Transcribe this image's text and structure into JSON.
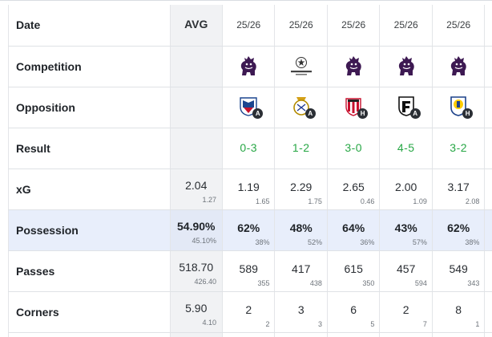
{
  "rows": {
    "date": {
      "label": "Date",
      "avg": "AVG",
      "games": [
        "25/26",
        "25/26",
        "25/26",
        "25/26",
        "25/26"
      ]
    },
    "competition": {
      "label": "Competition",
      "games": [
        "premier-league-icon",
        "champions-league-icon",
        "premier-league-icon",
        "premier-league-icon",
        "premier-league-icon"
      ]
    },
    "opposition": {
      "label": "Opposition",
      "games": [
        {
          "crest": "crystal-palace-crest-icon",
          "venue": "A"
        },
        {
          "crest": "real-madrid-crest-icon",
          "venue": "A"
        },
        {
          "crest": "sunderland-crest-icon",
          "venue": "H"
        },
        {
          "crest": "fulham-crest-icon",
          "venue": "A"
        },
        {
          "crest": "leeds-united-crest-icon",
          "venue": "H"
        }
      ]
    },
    "result": {
      "label": "Result",
      "games": [
        "0-3",
        "1-2",
        "3-0",
        "4-5",
        "3-2"
      ]
    },
    "xg": {
      "label": "xG",
      "avg": {
        "main": "2.04",
        "sub": "1.27"
      },
      "games": [
        {
          "main": "1.19",
          "sub": "1.65"
        },
        {
          "main": "2.29",
          "sub": "1.75"
        },
        {
          "main": "2.65",
          "sub": "0.46"
        },
        {
          "main": "2.00",
          "sub": "1.09"
        },
        {
          "main": "3.17",
          "sub": "2.08"
        }
      ]
    },
    "possession": {
      "label": "Possession",
      "avg": {
        "main": "54.90%",
        "sub": "45.10%"
      },
      "games": [
        {
          "main": "62%",
          "sub": "38%"
        },
        {
          "main": "48%",
          "sub": "52%"
        },
        {
          "main": "64%",
          "sub": "36%"
        },
        {
          "main": "43%",
          "sub": "57%"
        },
        {
          "main": "62%",
          "sub": "38%"
        }
      ]
    },
    "passes": {
      "label": "Passes",
      "avg": {
        "main": "518.70",
        "sub": "426.40"
      },
      "games": [
        {
          "main": "589",
          "sub": "355"
        },
        {
          "main": "417",
          "sub": "438"
        },
        {
          "main": "615",
          "sub": "350"
        },
        {
          "main": "457",
          "sub": "594"
        },
        {
          "main": "549",
          "sub": "343"
        }
      ]
    },
    "corners": {
      "label": "Corners",
      "avg": {
        "main": "5.90",
        "sub": "4.10"
      },
      "games": [
        {
          "main": "2",
          "sub": "2"
        },
        {
          "main": "3",
          "sub": "3"
        },
        {
          "main": "6",
          "sub": "5"
        },
        {
          "main": "2",
          "sub": "7"
        },
        {
          "main": "8",
          "sub": "1"
        }
      ]
    }
  },
  "colors": {
    "result_green": "#27a745",
    "possession_row_bg": "#e8eefb",
    "avg_col_bg": "#f1f2f4"
  }
}
